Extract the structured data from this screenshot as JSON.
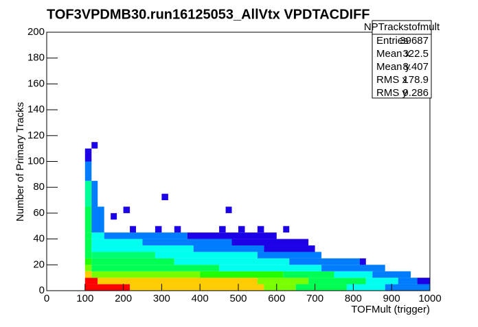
{
  "chart_data": {
    "type": "heatmap",
    "title": "TOF3VPDMB30.run16125053_AllVtx VPDTACDIFF",
    "x_label": "TOFMult (trigger)",
    "y_label": "Number of Primary Tracks",
    "xlim": [
      0,
      1000
    ],
    "ylim": [
      0,
      200
    ],
    "zlim": [
      1,
      1000
    ],
    "log_z": true,
    "xticks": [
      0,
      100,
      200,
      300,
      400,
      500,
      600,
      700,
      800,
      900,
      1000
    ],
    "yticks": [
      0,
      20,
      40,
      60,
      80,
      100,
      120,
      140,
      160,
      180,
      200
    ],
    "stats": {
      "name": "NPTrackstofmult",
      "rows": [
        {
          "label": "Entries",
          "value": 39687
        },
        {
          "label": "Mean x",
          "value": 322.5
        },
        {
          "label": "Mean y",
          "value": 8.407
        },
        {
          "label": "RMS x",
          "value": 178.9
        },
        {
          "label": "RMS y",
          "value": 9.286
        }
      ]
    },
    "cells": [
      [
        100,
        217,
        0,
        5,
        1000
      ],
      [
        217,
        567,
        0,
        5,
        300
      ],
      [
        567,
        650,
        0,
        5,
        100
      ],
      [
        650,
        783,
        0,
        5,
        30
      ],
      [
        783,
        883,
        0,
        5,
        12
      ],
      [
        883,
        1000,
        0,
        5,
        5
      ],
      [
        100,
        133,
        5,
        10,
        1000
      ],
      [
        133,
        550,
        5,
        10,
        300
      ],
      [
        550,
        683,
        5,
        10,
        100
      ],
      [
        683,
        833,
        5,
        10,
        30
      ],
      [
        833,
        917,
        5,
        10,
        12
      ],
      [
        917,
        967,
        5,
        10,
        5
      ],
      [
        967,
        1000,
        5,
        10,
        2
      ],
      [
        100,
        117,
        10,
        15,
        300
      ],
      [
        117,
        400,
        10,
        15,
        100
      ],
      [
        400,
        617,
        10,
        15,
        60
      ],
      [
        617,
        750,
        10,
        15,
        30
      ],
      [
        750,
        850,
        10,
        15,
        12
      ],
      [
        850,
        950,
        10,
        15,
        5
      ],
      [
        100,
        117,
        15,
        20,
        100
      ],
      [
        117,
        450,
        15,
        20,
        30
      ],
      [
        450,
        717,
        15,
        20,
        12
      ],
      [
        717,
        883,
        15,
        20,
        5
      ],
      [
        100,
        117,
        20,
        25,
        60
      ],
      [
        117,
        333,
        20,
        25,
        30
      ],
      [
        333,
        633,
        20,
        25,
        12
      ],
      [
        633,
        817,
        20,
        25,
        5
      ],
      [
        817,
        833,
        20,
        25,
        2
      ],
      [
        100,
        117,
        25,
        30,
        30
      ],
      [
        117,
        283,
        25,
        30,
        25
      ],
      [
        283,
        550,
        25,
        30,
        12
      ],
      [
        550,
        717,
        25,
        30,
        5
      ],
      [
        100,
        117,
        30,
        35,
        30
      ],
      [
        117,
        383,
        30,
        35,
        12
      ],
      [
        383,
        567,
        30,
        35,
        5
      ],
      [
        567,
        700,
        30,
        35,
        2
      ],
      [
        100,
        117,
        35,
        40,
        30
      ],
      [
        117,
        250,
        35,
        40,
        12
      ],
      [
        250,
        483,
        35,
        40,
        5
      ],
      [
        483,
        683,
        35,
        40,
        2
      ],
      [
        100,
        117,
        40,
        45,
        30
      ],
      [
        117,
        150,
        40,
        45,
        12
      ],
      [
        150,
        367,
        40,
        45,
        5
      ],
      [
        367,
        600,
        40,
        45,
        2
      ],
      [
        100,
        117,
        45,
        65,
        30
      ],
      [
        117,
        150,
        45,
        65,
        5
      ],
      [
        100,
        117,
        65,
        85,
        20
      ],
      [
        117,
        133,
        65,
        85,
        5
      ],
      [
        100,
        117,
        85,
        100,
        5
      ],
      [
        100,
        117,
        100,
        110,
        2
      ],
      [
        117,
        133,
        110,
        115,
        2
      ],
      [
        300,
        317,
        70,
        75,
        2
      ],
      [
        200,
        217,
        60,
        65,
        2
      ],
      [
        467,
        483,
        60,
        65,
        2
      ],
      [
        167,
        183,
        55,
        60,
        2
      ],
      [
        217,
        233,
        45,
        50,
        2
      ],
      [
        283,
        300,
        45,
        50,
        2
      ],
      [
        333,
        350,
        45,
        50,
        2
      ],
      [
        450,
        467,
        45,
        50,
        2
      ],
      [
        500,
        517,
        45,
        50,
        2
      ],
      [
        550,
        567,
        45,
        50,
        2
      ],
      [
        617,
        633,
        45,
        50,
        2
      ]
    ]
  }
}
